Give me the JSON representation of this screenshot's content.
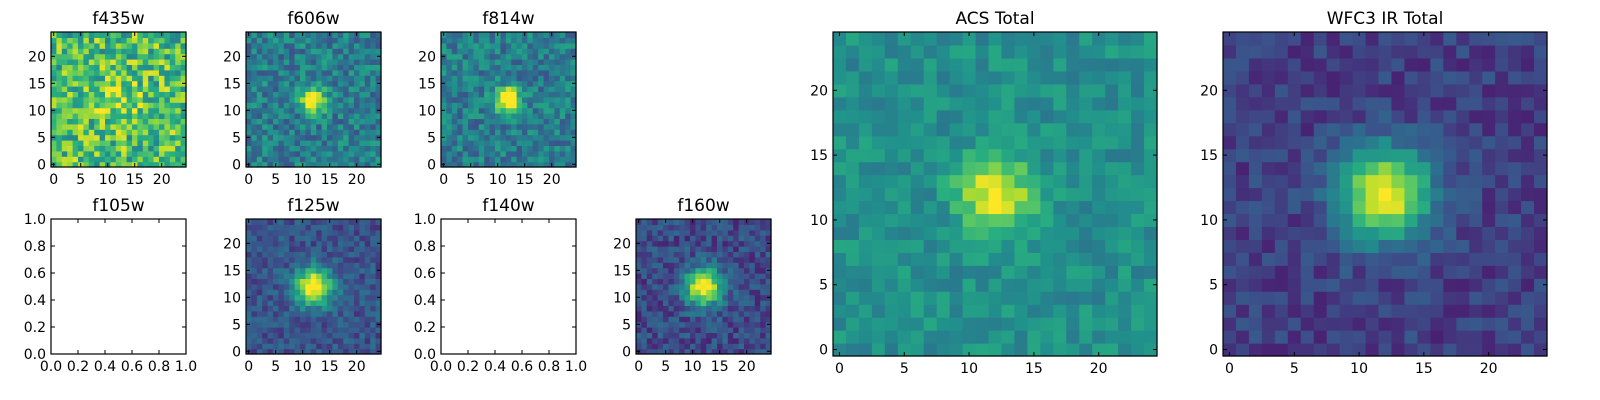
{
  "figure": {
    "colormap": "viridis"
  },
  "chart_data": [
    {
      "type": "heatmap",
      "title": "f435w",
      "size": 25,
      "xticks": [
        "0",
        "5",
        "10",
        "15",
        "20"
      ],
      "yticks": [
        "0",
        "5",
        "10",
        "15",
        "20"
      ],
      "xlim": [
        0,
        25
      ],
      "ylim": [
        0,
        25
      ],
      "source": {
        "peak": 0.15,
        "sigma": 3.0,
        "noise": 0.26,
        "base": 0.7,
        "seed": 3
      },
      "empty": false
    },
    {
      "type": "heatmap",
      "title": "f606w",
      "size": 25,
      "xticks": [
        "0",
        "5",
        "10",
        "15",
        "20"
      ],
      "yticks": [
        "0",
        "5",
        "10",
        "15",
        "20"
      ],
      "xlim": [
        0,
        25
      ],
      "ylim": [
        0,
        25
      ],
      "source": {
        "peak": 0.72,
        "sigma": 1.6,
        "noise": 0.17,
        "base": 0.42,
        "seed": 7
      },
      "empty": false
    },
    {
      "type": "heatmap",
      "title": "f814w",
      "size": 25,
      "xticks": [
        "0",
        "5",
        "10",
        "15",
        "20"
      ],
      "yticks": [
        "0",
        "5",
        "10",
        "15",
        "20"
      ],
      "xlim": [
        0,
        25
      ],
      "ylim": [
        0,
        25
      ],
      "source": {
        "peak": 0.78,
        "sigma": 1.6,
        "noise": 0.16,
        "base": 0.42,
        "seed": 11
      },
      "empty": false
    },
    {
      "type": "heatmap",
      "title": "f105w",
      "xticks": [
        "0.0",
        "0.2",
        "0.4",
        "0.6",
        "0.8",
        "1.0"
      ],
      "yticks": [
        "0.0",
        "0.2",
        "0.4",
        "0.6",
        "0.8",
        "1.0"
      ],
      "xlim": [
        0,
        1
      ],
      "ylim": [
        0,
        1
      ],
      "empty": true
    },
    {
      "type": "heatmap",
      "title": "f125w",
      "size": 25,
      "xticks": [
        "0",
        "5",
        "10",
        "15",
        "20"
      ],
      "yticks": [
        "0",
        "5",
        "10",
        "15",
        "20"
      ],
      "xlim": [
        0,
        25
      ],
      "ylim": [
        0,
        25
      ],
      "source": {
        "peak": 0.82,
        "sigma": 2.4,
        "noise": 0.11,
        "base": 0.27,
        "seed": 19
      },
      "empty": false
    },
    {
      "type": "heatmap",
      "title": "f140w",
      "xticks": [
        "0.0",
        "0.2",
        "0.4",
        "0.6",
        "0.8",
        "1.0"
      ],
      "yticks": [
        "0.0",
        "0.2",
        "0.4",
        "0.6",
        "0.8",
        "1.0"
      ],
      "xlim": [
        0,
        1
      ],
      "ylim": [
        0,
        1
      ],
      "empty": true
    },
    {
      "type": "heatmap",
      "title": "f160w",
      "size": 25,
      "xticks": [
        "0",
        "5",
        "10",
        "15",
        "20"
      ],
      "yticks": [
        "0",
        "5",
        "10",
        "15",
        "20"
      ],
      "xlim": [
        0,
        25
      ],
      "ylim": [
        0,
        25
      ],
      "source": {
        "peak": 0.82,
        "sigma": 2.4,
        "noise": 0.12,
        "base": 0.24,
        "seed": 23
      },
      "empty": false
    },
    {
      "type": "heatmap",
      "title": "ACS Total",
      "size": 25,
      "xticks": [
        "0",
        "5",
        "10",
        "15",
        "20"
      ],
      "yticks": [
        "0",
        "5",
        "10",
        "15",
        "20"
      ],
      "xlim": [
        0,
        25
      ],
      "ylim": [
        0,
        25
      ],
      "source": {
        "peak": 0.52,
        "sigma": 1.9,
        "noise": 0.1,
        "base": 0.5,
        "seed": 31
      },
      "empty": false
    },
    {
      "type": "heatmap",
      "title": "WFC3 IR Total",
      "size": 25,
      "xticks": [
        "0",
        "5",
        "10",
        "15",
        "20"
      ],
      "yticks": [
        "0",
        "5",
        "10",
        "15",
        "20"
      ],
      "xlim": [
        0,
        25
      ],
      "ylim": [
        0,
        25
      ],
      "source": {
        "peak": 0.8,
        "sigma": 2.5,
        "noise": 0.08,
        "base": 0.2,
        "seed": 37
      },
      "empty": false
    }
  ]
}
